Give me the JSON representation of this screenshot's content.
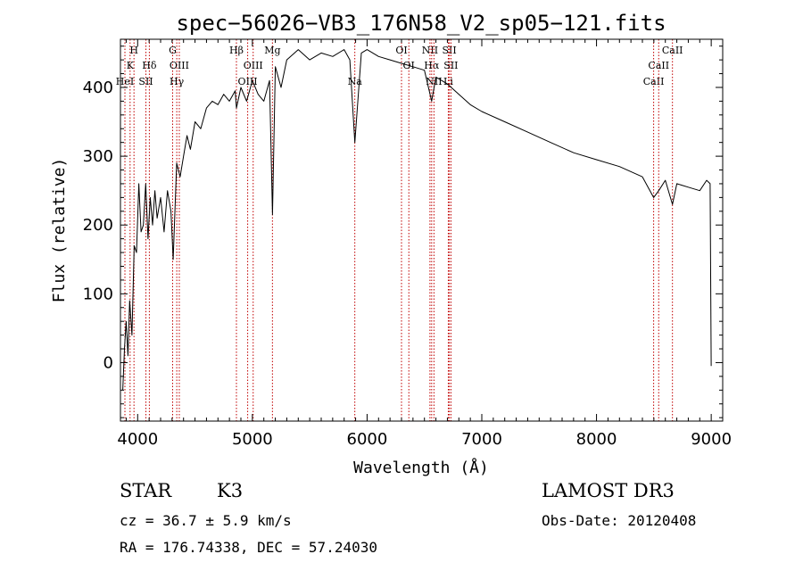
{
  "chart_data": {
    "type": "line",
    "title": "spec−56026−VB3_176N58_V2_sp05−121.fits",
    "xlabel": "Wavelength (Å)",
    "ylabel": "Flux (relative)",
    "xlim": [
      3850,
      9100
    ],
    "ylim": [
      -85,
      470
    ],
    "x_ticks": [
      4000,
      5000,
      6000,
      7000,
      8000,
      9000
    ],
    "y_ticks": [
      0,
      100,
      200,
      300,
      400
    ],
    "series": [
      {
        "name": "spectrum",
        "x": [
          3870,
          3885,
          3900,
          3915,
          3930,
          3950,
          3970,
          3990,
          4010,
          4030,
          4050,
          4070,
          4090,
          4110,
          4130,
          4150,
          4170,
          4200,
          4230,
          4260,
          4290,
          4310,
          4340,
          4370,
          4400,
          4430,
          4460,
          4500,
          4550,
          4600,
          4650,
          4700,
          4750,
          4800,
          4850,
          4861,
          4900,
          4950,
          5000,
          5050,
          5100,
          5150,
          5175,
          5200,
          5250,
          5300,
          5400,
          5500,
          5600,
          5700,
          5800,
          5850,
          5893,
          5950,
          6000,
          6100,
          6200,
          6300,
          6400,
          6500,
          6563,
          6600,
          6700,
          6800,
          6900,
          7000,
          7200,
          7400,
          7600,
          7800,
          8000,
          8200,
          8400,
          8498,
          8542,
          8600,
          8662,
          8700,
          8800,
          8900,
          8960,
          8990,
          9000
        ],
        "y": [
          -40,
          20,
          60,
          10,
          90,
          40,
          170,
          160,
          260,
          190,
          200,
          260,
          180,
          240,
          200,
          250,
          210,
          240,
          190,
          250,
          220,
          150,
          290,
          270,
          300,
          330,
          310,
          350,
          340,
          370,
          380,
          375,
          390,
          380,
          395,
          370,
          400,
          380,
          410,
          390,
          380,
          410,
          215,
          430,
          400,
          440,
          455,
          440,
          450,
          445,
          455,
          440,
          320,
          450,
          455,
          445,
          440,
          435,
          430,
          425,
          380,
          415,
          405,
          390,
          375,
          365,
          350,
          335,
          320,
          305,
          295,
          285,
          270,
          240,
          250,
          265,
          230,
          260,
          255,
          250,
          265,
          260,
          -5
        ]
      }
    ],
    "lines": [
      {
        "wavelength": 3889,
        "label": "HeI",
        "row": 3
      },
      {
        "wavelength": 3934,
        "label": "K",
        "row": 2
      },
      {
        "wavelength": 3968,
        "label": "H",
        "row": 1
      },
      {
        "wavelength": 4072,
        "label": "SII",
        "row": 3
      },
      {
        "wavelength": 4102,
        "label": "Hδ",
        "row": 2
      },
      {
        "wavelength": 4305,
        "label": "G",
        "row": 1
      },
      {
        "wavelength": 4341,
        "label": "Hγ",
        "row": 3
      },
      {
        "wavelength": 4363,
        "label": "OIII",
        "row": 2
      },
      {
        "wavelength": 4861,
        "label": "Hβ",
        "row": 1
      },
      {
        "wavelength": 4959,
        "label": "OIII",
        "row": 3
      },
      {
        "wavelength": 5007,
        "label": "OIII",
        "row": 2
      },
      {
        "wavelength": 5175,
        "label": "Mg",
        "row": 1
      },
      {
        "wavelength": 5893,
        "label": "Na",
        "row": 3
      },
      {
        "wavelength": 6300,
        "label": "OI",
        "row": 1
      },
      {
        "wavelength": 6364,
        "label": "OI",
        "row": 2
      },
      {
        "wavelength": 6548,
        "label": "NII",
        "row": 1
      },
      {
        "wavelength": 6563,
        "label": "Hα",
        "row": 2
      },
      {
        "wavelength": 6583,
        "label": "NII",
        "row": 3
      },
      {
        "wavelength": 6708,
        "label": "Li",
        "row": 3
      },
      {
        "wavelength": 6717,
        "label": "SII",
        "row": 1
      },
      {
        "wavelength": 6731,
        "label": "SII",
        "row": 2
      },
      {
        "wavelength": 8498,
        "label": "CaII",
        "row": 3
      },
      {
        "wavelength": 8542,
        "label": "CaII",
        "row": 2
      },
      {
        "wavelength": 8662,
        "label": "CaII",
        "row": 1
      }
    ]
  },
  "info": {
    "object_class": "STAR",
    "subclass": "K3",
    "survey": "LAMOST DR3",
    "redshift": "cz = 36.7 ± 5.9 km/s",
    "obs_date": "Obs-Date: 20120408",
    "coords": "RA = 176.74338, DEC =  57.24030"
  },
  "colors": {
    "spectrum": "#000000",
    "marker_lines": "#c00000",
    "axes": "#000000"
  }
}
